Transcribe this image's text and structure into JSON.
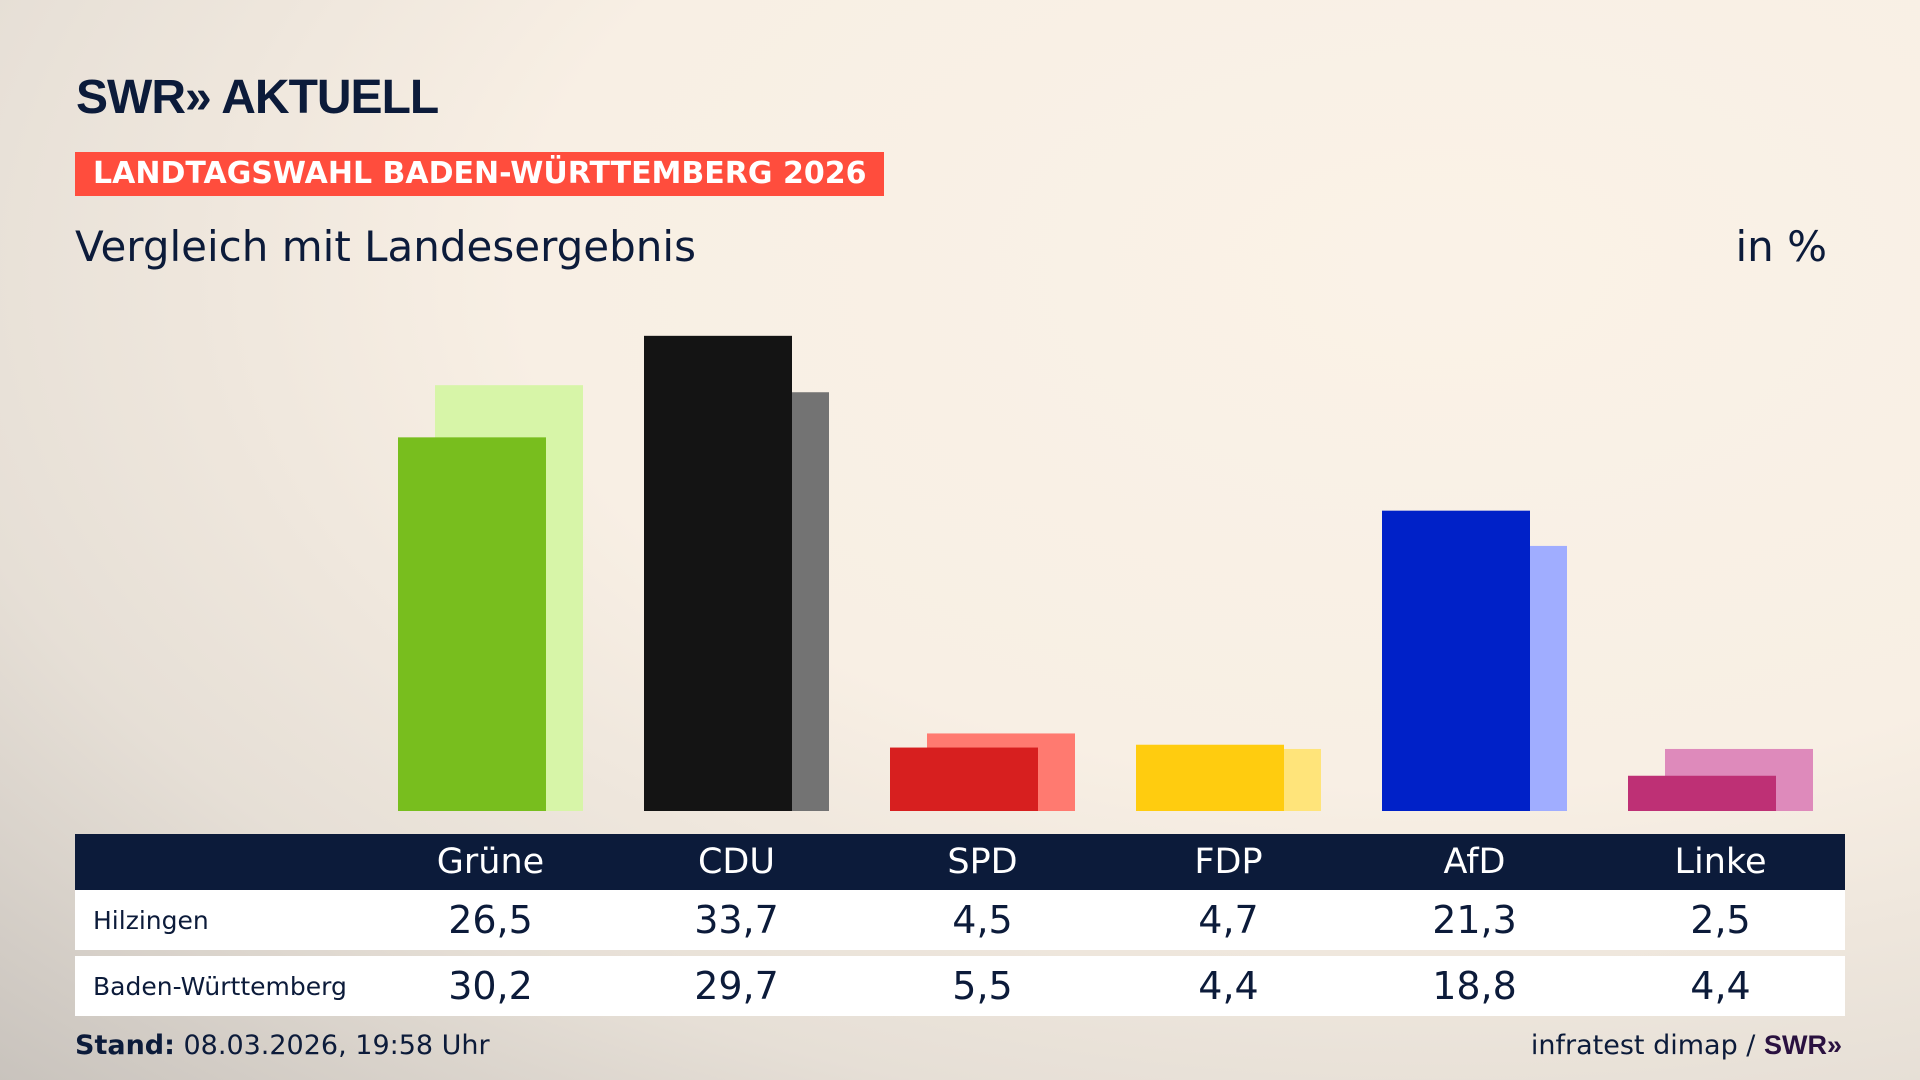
{
  "header": {
    "logo": "SWR» AKTUELL",
    "banner": "LANDTAGSWAHL BADEN-WÜRTTEMBERG 2026",
    "subtitle": "Vergleich mit Landesergebnis",
    "unit": "in %"
  },
  "chart_data": {
    "type": "bar",
    "categories": [
      "Grüne",
      "CDU",
      "SPD",
      "FDP",
      "AfD",
      "Linke"
    ],
    "series": [
      {
        "name": "Hilzingen",
        "values": [
          26.5,
          33.7,
          4.5,
          4.7,
          21.3,
          2.5
        ],
        "colors": [
          "#78be1e",
          "#141414",
          "#d71f1f",
          "#ffcc0f",
          "#0021c8",
          "#be3075"
        ]
      },
      {
        "name": "Baden-Württemberg",
        "values": [
          30.2,
          29.7,
          5.5,
          4.4,
          18.8,
          4.4
        ],
        "colors": [
          "#d7f5a8",
          "#737373",
          "#ff7a70",
          "#ffe47a",
          "#a0adff",
          "#de8abb"
        ]
      }
    ]
  },
  "footer": {
    "stand_label": "Stand:",
    "stand_value": " 08.03.2026, 19:58 Uhr",
    "source": "infratest dimap / ",
    "source_logo": "SWR»"
  }
}
